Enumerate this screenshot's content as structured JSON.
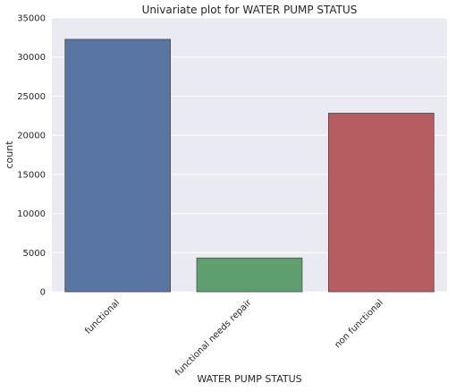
{
  "chart_data": {
    "type": "bar",
    "title": "Univariate plot for WATER PUMP STATUS",
    "xlabel": "WATER PUMP STATUS",
    "ylabel": "count",
    "categories": [
      "functional",
      "functional needs repair",
      "non functional"
    ],
    "values": [
      32259,
      4317,
      22824
    ],
    "ylim": [
      0,
      35000
    ],
    "yticks": [
      0,
      5000,
      10000,
      15000,
      20000,
      25000,
      30000,
      35000
    ],
    "grid": true,
    "colors": [
      "#5975a4",
      "#5f9e6e",
      "#b55d60"
    ],
    "background": "#eaeaf2"
  }
}
